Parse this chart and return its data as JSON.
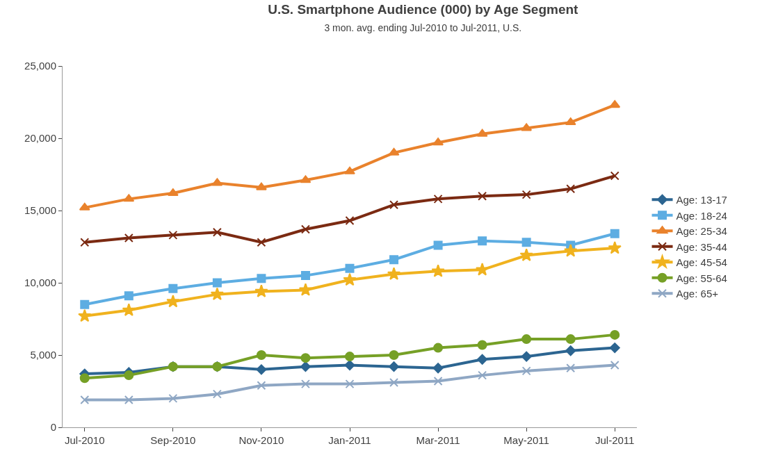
{
  "chart_data": {
    "type": "line",
    "title": "U.S. Smartphone Audience (000) by Age Segment",
    "subtitle": "3 mon. avg. ending Jul-2010 to Jul-2011, U.S.",
    "categories": [
      "Jul-2010",
      null,
      "Sep-2010",
      null,
      "Nov-2010",
      null,
      "Jan-2011",
      null,
      "Mar-2011",
      null,
      "May-2011",
      null,
      "Jul-2011"
    ],
    "series": [
      {
        "name": "Age: 13-17",
        "color": "#2c6591",
        "marker": "diamond",
        "values": [
          3700,
          3800,
          4200,
          4200,
          4000,
          4200,
          4300,
          4200,
          4100,
          4700,
          4900,
          5300,
          5500
        ]
      },
      {
        "name": "Age: 18-24",
        "color": "#5dade2",
        "marker": "square",
        "values": [
          8500,
          9100,
          9600,
          10000,
          10300,
          10500,
          11000,
          11600,
          12600,
          12900,
          12800,
          12600,
          13400
        ]
      },
      {
        "name": "Age: 25-34",
        "color": "#e9822c",
        "marker": "triangle",
        "values": [
          15200,
          15800,
          16200,
          16900,
          16600,
          17100,
          17700,
          19000,
          19700,
          20300,
          20700,
          21100,
          22300
        ]
      },
      {
        "name": "Age: 35-44",
        "color": "#7b2a12",
        "marker": "cross",
        "values": [
          12800,
          13100,
          13300,
          13500,
          12800,
          13700,
          14300,
          15400,
          15800,
          16000,
          16100,
          16500,
          17400
        ]
      },
      {
        "name": "Age: 45-54",
        "color": "#f0b21e",
        "marker": "star",
        "values": [
          7700,
          8100,
          8700,
          9200,
          9400,
          9500,
          10200,
          10600,
          10800,
          10900,
          11900,
          12200,
          12400
        ]
      },
      {
        "name": "Age: 55-64",
        "color": "#76a026",
        "marker": "circle",
        "values": [
          3400,
          3600,
          4200,
          4200,
          5000,
          4800,
          4900,
          5000,
          5500,
          5700,
          6100,
          6100,
          6400
        ]
      },
      {
        "name": "Age: 65+",
        "color": "#8fa7c4",
        "marker": "cross",
        "values": [
          1900,
          1900,
          2000,
          2300,
          2900,
          3000,
          3000,
          3100,
          3200,
          3600,
          3900,
          4100,
          4300
        ]
      }
    ],
    "ylim": [
      0,
      25000
    ],
    "yticks": [
      {
        "value": 0,
        "label": "0"
      },
      {
        "value": 5000,
        "label": "5,000"
      },
      {
        "value": 10000,
        "label": "10,000"
      },
      {
        "value": 15000,
        "label": "15,000"
      },
      {
        "value": 20000,
        "label": "20,000"
      },
      {
        "value": 25000,
        "label": "25,000"
      }
    ],
    "legend": "right"
  }
}
